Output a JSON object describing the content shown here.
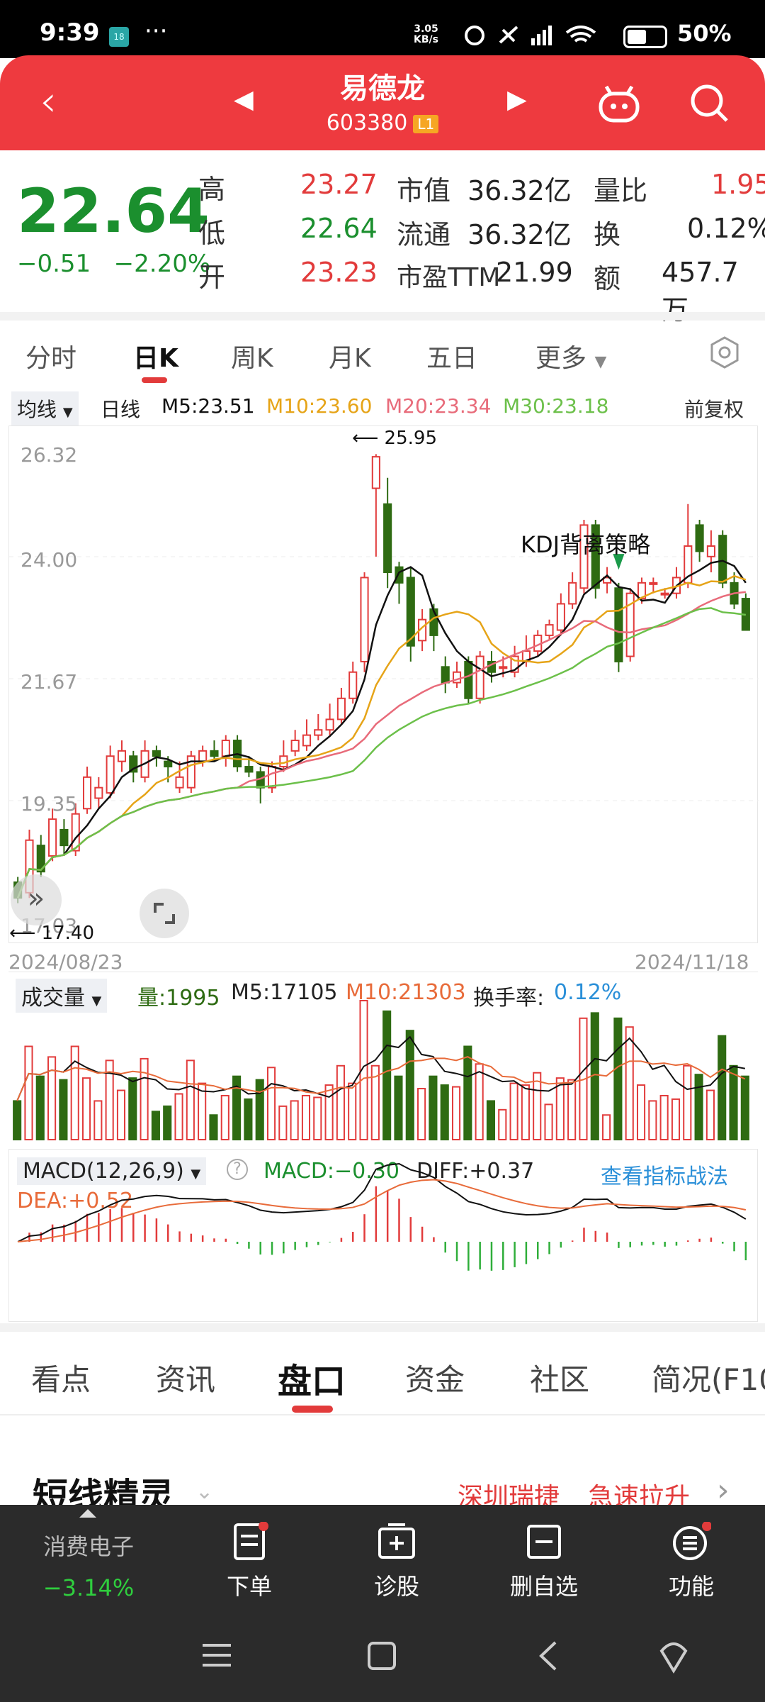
{
  "status": {
    "time": "9:39",
    "badge": "18",
    "dots": "···",
    "net_speed": "3.05",
    "net_unit": "KB/s",
    "battery": "50%"
  },
  "header": {
    "title": "易德龙",
    "code": "603380",
    "level": "L1"
  },
  "quote": {
    "price": "22.64",
    "change": "−0.51",
    "change_pct": "−2.20%",
    "high_label": "高",
    "high": "23.27",
    "low_label": "低",
    "low": "22.64",
    "open_label": "开",
    "open": "23.23",
    "mcap_label": "市值",
    "mcap": "36.32亿",
    "float_label": "流通",
    "float": "36.32亿",
    "pe_label": "市盈TTM",
    "pe": "21.99",
    "vr_label": "量比",
    "vr": "1.95",
    "turn_label": "换",
    "turn": "0.12%",
    "amt_label": "额",
    "amt": "457.7万"
  },
  "chart_tabs": [
    "分时",
    "日K",
    "周K",
    "月K",
    "五日",
    "更多"
  ],
  "ma": {
    "select": "均线",
    "type": "日线",
    "m5": "M5:23.51",
    "m10": "M10:23.60",
    "m20": "M20:23.34",
    "m30": "M30:23.18",
    "adjust": "前复权"
  },
  "colors": {
    "up": "#e23b3b",
    "down": "#2e6b12",
    "m5": "#111111",
    "m10": "#e6a418",
    "m20": "#e86b7a",
    "m30": "#6cc04a",
    "header": "#ee3a3f"
  },
  "chart_data": {
    "type": "candlestick",
    "y_ticks": [
      "26.32",
      "24.00",
      "21.67",
      "19.35",
      "17.03"
    ],
    "ylim": [
      17.03,
      26.32
    ],
    "x_start": "2024/08/23",
    "x_end": "2024/11/18",
    "max_label": "25.95",
    "min_label": "17.40",
    "annotation": "KDJ背离策略",
    "candles": [
      [
        17.8,
        17.5,
        17.9,
        17.4
      ],
      [
        17.6,
        18.6,
        18.8,
        17.5
      ],
      [
        18.5,
        18.0,
        18.7,
        17.9
      ],
      [
        18.3,
        19.0,
        19.2,
        18.2
      ],
      [
        18.8,
        18.5,
        19.0,
        18.3
      ],
      [
        18.4,
        19.1,
        19.3,
        18.3
      ],
      [
        19.2,
        19.8,
        20.0,
        19.1
      ],
      [
        19.4,
        19.6,
        19.8,
        19.2
      ],
      [
        19.5,
        20.2,
        20.4,
        19.4
      ],
      [
        20.1,
        20.3,
        20.5,
        19.9
      ],
      [
        20.2,
        19.9,
        20.3,
        19.7
      ],
      [
        19.8,
        20.3,
        20.5,
        19.7
      ],
      [
        20.3,
        20.2,
        20.4,
        20.0
      ],
      [
        20.1,
        20.0,
        20.2,
        19.7
      ],
      [
        19.6,
        19.8,
        20.1,
        19.5
      ],
      [
        19.6,
        20.2,
        20.3,
        19.5
      ],
      [
        20.1,
        20.3,
        20.4,
        20.0
      ],
      [
        20.3,
        20.2,
        20.5,
        20.1
      ],
      [
        20.2,
        20.5,
        20.6,
        20.0
      ],
      [
        20.5,
        20.0,
        20.6,
        19.9
      ],
      [
        20.0,
        19.9,
        20.2,
        19.8
      ],
      [
        19.9,
        19.6,
        20.0,
        19.3
      ],
      [
        19.6,
        20.0,
        20.1,
        19.5
      ],
      [
        20.0,
        20.2,
        20.5,
        19.9
      ],
      [
        20.3,
        20.5,
        20.7,
        20.2
      ],
      [
        20.4,
        20.6,
        20.9,
        20.3
      ],
      [
        20.6,
        20.7,
        21.0,
        20.5
      ],
      [
        20.7,
        20.9,
        21.2,
        20.6
      ],
      [
        20.9,
        21.3,
        21.5,
        20.8
      ],
      [
        21.3,
        21.8,
        22.0,
        21.2
      ],
      [
        22.0,
        23.6,
        23.7,
        21.8
      ],
      [
        25.3,
        25.9,
        25.95,
        24.0
      ],
      [
        25.0,
        23.7,
        25.5,
        23.4
      ],
      [
        23.8,
        23.5,
        23.9,
        23.1
      ],
      [
        23.6,
        22.3,
        23.8,
        22.0
      ],
      [
        22.4,
        22.8,
        23.0,
        22.2
      ],
      [
        23.0,
        22.5,
        23.1,
        22.2
      ],
      [
        21.9,
        21.6,
        22.1,
        21.4
      ],
      [
        21.6,
        21.8,
        22.0,
        21.5
      ],
      [
        22.0,
        21.3,
        22.1,
        21.2
      ],
      [
        21.3,
        22.1,
        22.2,
        21.2
      ],
      [
        22.0,
        21.8,
        22.2,
        21.6
      ],
      [
        21.9,
        21.9,
        22.1,
        21.7
      ],
      [
        21.8,
        22.1,
        22.3,
        21.7
      ],
      [
        22.0,
        22.2,
        22.5,
        21.9
      ],
      [
        22.2,
        22.5,
        22.6,
        22.1
      ],
      [
        22.5,
        22.7,
        22.8,
        22.4
      ],
      [
        22.6,
        23.1,
        23.3,
        22.5
      ],
      [
        23.1,
        23.5,
        23.7,
        23.0
      ],
      [
        23.4,
        24.6,
        24.7,
        23.3
      ],
      [
        24.6,
        23.4,
        24.7,
        23.2
      ],
      [
        23.5,
        23.6,
        23.8,
        23.3
      ],
      [
        23.4,
        22.0,
        23.5,
        21.8
      ],
      [
        22.1,
        23.3,
        23.4,
        22.0
      ],
      [
        23.2,
        23.5,
        23.6,
        23.1
      ],
      [
        23.5,
        23.5,
        23.6,
        23.3
      ],
      [
        23.3,
        23.3,
        23.4,
        23.2
      ],
      [
        23.3,
        23.6,
        23.8,
        23.2
      ],
      [
        23.5,
        24.2,
        25.0,
        23.4
      ],
      [
        24.6,
        24.1,
        24.7,
        23.9
      ],
      [
        24.0,
        24.2,
        24.5,
        23.7
      ],
      [
        24.4,
        23.5,
        24.5,
        23.4
      ],
      [
        23.5,
        23.1,
        23.7,
        23.0
      ],
      [
        23.2,
        22.6,
        23.3,
        22.6
      ]
    ]
  },
  "volume": {
    "select": "成交量",
    "vol": "量:1995",
    "m5": "M5:17105",
    "m10": "M10:21303",
    "turn_label": "换手率:",
    "turn": "0.12%"
  },
  "macd": {
    "select": "MACD(12,26,9)",
    "help": "?",
    "macd": "MACD:−0.30",
    "diff": "DIFF:+0.37",
    "link": "查看指标战法",
    "dea": "DEA:+0.52"
  },
  "detail_tabs": [
    "看点",
    "资讯",
    "盘口",
    "资金",
    "社区",
    "简况(F10)"
  ],
  "section": {
    "title": "短线精灵",
    "tag1": "深圳瑞捷",
    "tag2": "急速拉升"
  },
  "bottom": {
    "sector": "消费电子",
    "sector_chg": "−3.14%",
    "order": "下单",
    "diag": "诊股",
    "del": "删自选",
    "func": "功能"
  }
}
